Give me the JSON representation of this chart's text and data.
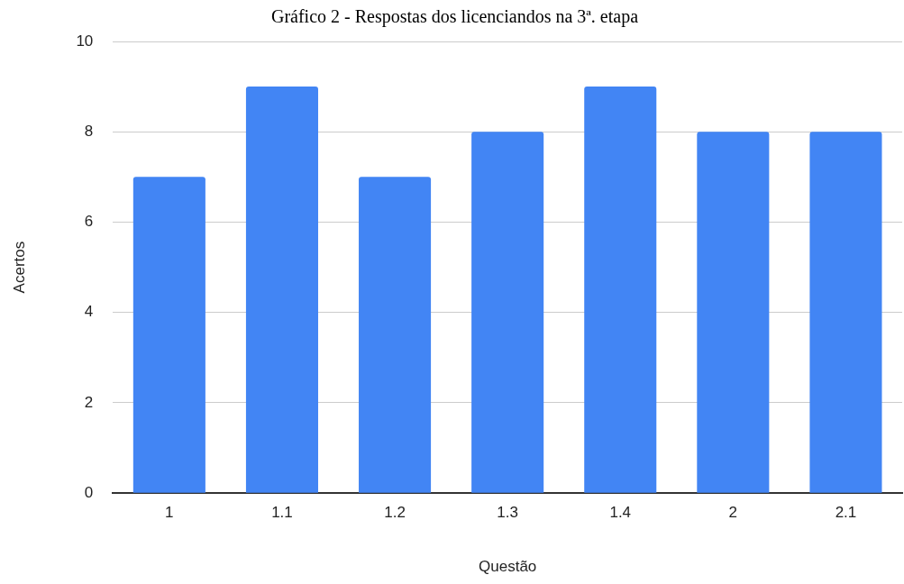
{
  "chart_data": {
    "type": "bar",
    "title": "Gráfico 2 - Respostas dos licenciandos na 3ª. etapa",
    "xlabel": "Questão",
    "ylabel": "Acertos",
    "categories": [
      "1",
      "1.1",
      "1.2",
      "1.3",
      "1.4",
      "2",
      "2.1"
    ],
    "values": [
      7,
      9,
      7,
      8,
      9,
      8,
      8
    ],
    "color": "#4285f4",
    "ylim": [
      0,
      10
    ],
    "yticks": [
      0,
      2,
      4,
      6,
      8,
      10
    ],
    "grid": "y",
    "legend": false
  }
}
